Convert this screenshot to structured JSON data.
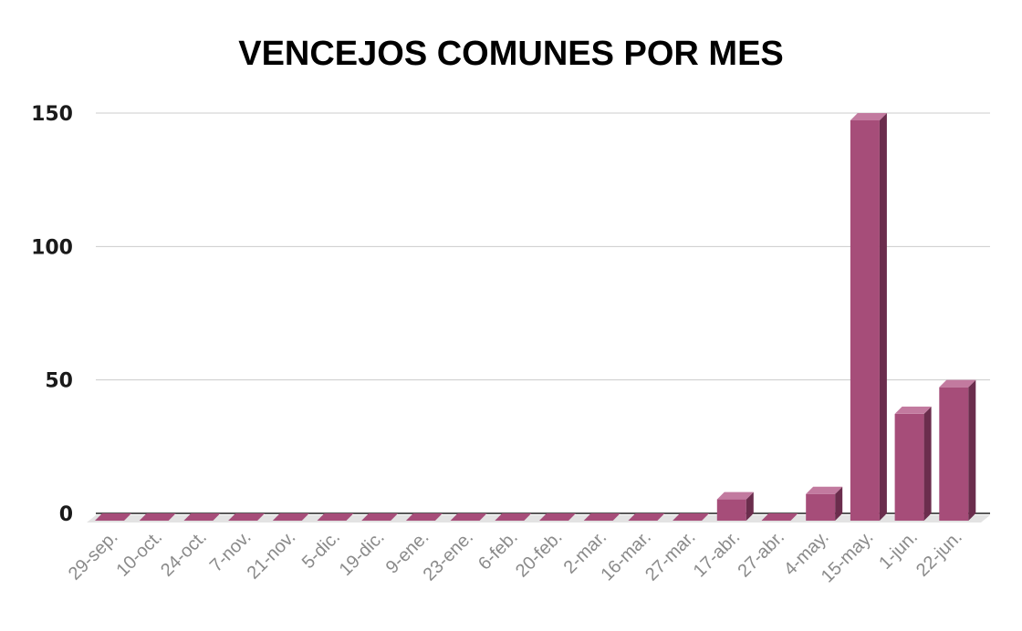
{
  "chart_data": {
    "type": "bar",
    "title": "VENCEJOS COMUNES POR MES",
    "xlabel": "",
    "ylabel": "",
    "categories": [
      "29-sep.",
      "10-oct.",
      "24-oct.",
      "7-nov.",
      "21-nov.",
      "5-dic.",
      "19-dic.",
      "9-ene.",
      "23-ene.",
      "6-feb.",
      "20-feb.",
      "2-mar.",
      "16-mar.",
      "27-mar.",
      "17-abr.",
      "27-abr.",
      "4-may.",
      "15-may.",
      "1-jun.",
      "22-jun."
    ],
    "values": [
      0,
      0,
      0,
      0,
      0,
      0,
      0,
      0,
      0,
      0,
      0,
      0,
      0,
      0,
      8,
      0,
      10,
      150,
      40,
      50
    ],
    "ylim": [
      0,
      150
    ],
    "yticks": [
      "0",
      "50",
      "100",
      "150"
    ],
    "grid": true,
    "legend": "none",
    "colors": {
      "bar": "#a64d79",
      "bar_top": "#c27a9f",
      "bar_side": "#6b2d4d",
      "floor": "#e3e3e3",
      "grid": "#cccccc"
    }
  }
}
